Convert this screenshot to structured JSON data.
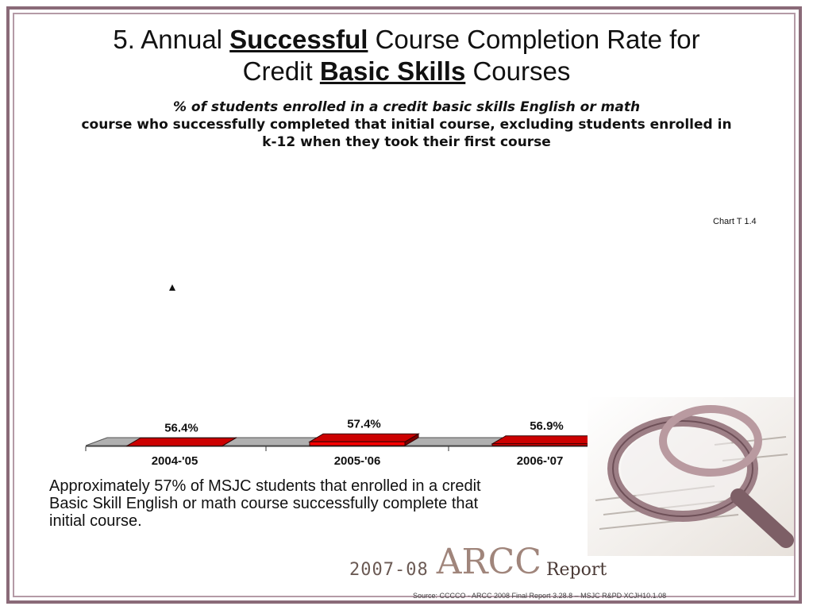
{
  "title": {
    "prefix": "5. Annual ",
    "emph1": "Successful",
    "middle": " Course  Completion Rate for",
    "line2_prefix": "Credit ",
    "emph2": "Basic Skills",
    "line2_suffix": " Courses"
  },
  "subtitle": {
    "line1": "% of students enrolled in a credit basic skills English or math",
    "line2": "course who successfully completed that initial course, excluding students enrolled in",
    "line3": "k-12 when they took their first course"
  },
  "chart_label": "Chart T 1.4",
  "summary": "Approximately 57% of MSJC students that enrolled in a credit Basic Skill English or math course successfully complete that initial course.",
  "logo": {
    "year": "2007-08",
    "arcc": "ARCC",
    "report": "Report"
  },
  "source": "Source: CCCCO - ARCC 2008 Final Report 3.28.8 – MSJC R&PD XCJH10.1.08",
  "colors": {
    "bar_front": "#ff0000",
    "bar_side": "#7a0000",
    "bar_top": "#cc0000",
    "floor": "#b0b0b0"
  },
  "chart_data": {
    "type": "bar",
    "categories": [
      "2004-'05",
      "2005-'06",
      "2006-'07"
    ],
    "values": [
      56.4,
      57.4,
      56.9
    ],
    "data_labels": [
      "56.4%",
      "57.4%",
      "56.9%"
    ],
    "title": "",
    "xlabel": "",
    "ylabel": "",
    "grid": false,
    "legend": "none"
  }
}
